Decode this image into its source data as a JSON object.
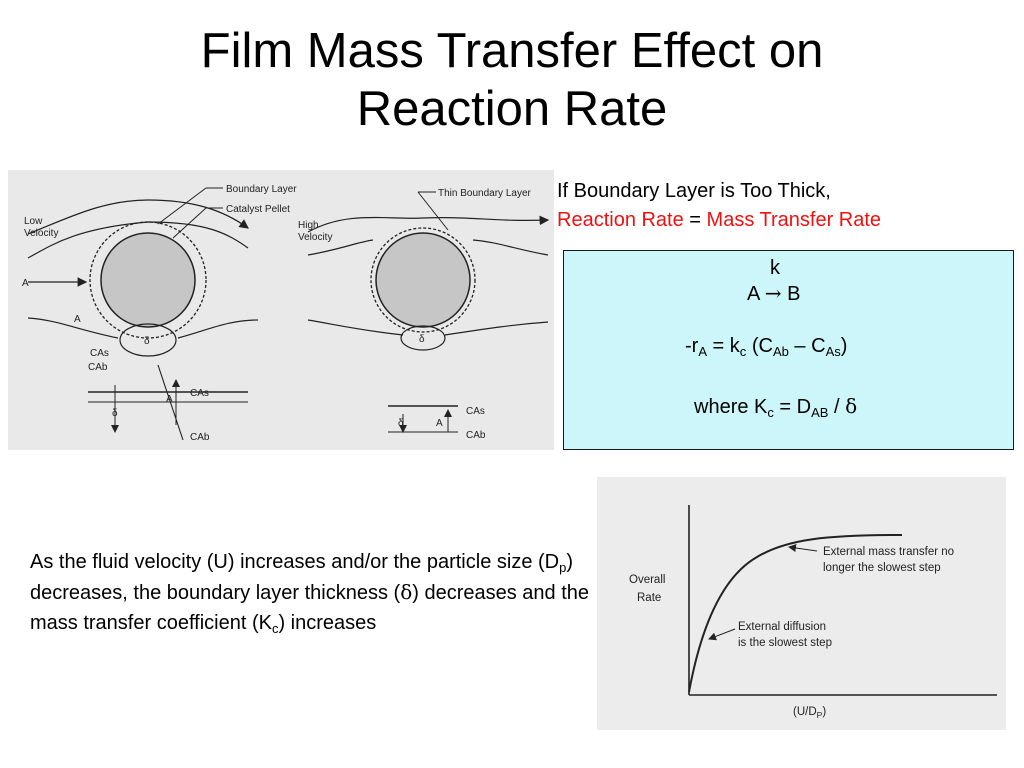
{
  "slide": {
    "title_line1": "Film Mass Transfer Effect on",
    "title_line2": "Reaction Rate"
  },
  "figure_left": {
    "labels": {
      "boundary_layer": "Boundary Layer",
      "catalyst_pellet": "Catalyst Pellet",
      "low": "Low",
      "velocity": "Velocity",
      "high": "High",
      "thin_boundary_layer": "Thin Boundary Layer",
      "a_species": "A",
      "delta": "δ",
      "c_as": "CAs",
      "c_ab": "CAb"
    }
  },
  "note": {
    "line1": "If Boundary Layer is Too Thick,",
    "reaction_rate": "Reaction Rate",
    "equals": " = ",
    "mass_transfer_rate": "Mass Transfer Rate"
  },
  "equation_box": {
    "k_label": "k",
    "reaction_left": "A ",
    "arrow": "→",
    "reaction_right": " B",
    "rate_prefix": "-r",
    "rate_sub_a": "A",
    "rate_eq": " = k",
    "rate_sub_c": "c",
    "rate_paren_open": " (C",
    "rate_sub_ab": "Ab",
    "rate_minus": " – C",
    "rate_sub_as": "As",
    "rate_paren_close": ")",
    "where_prefix": "where K",
    "where_sub_c": "c",
    "where_eq": " = D",
    "where_sub_ab": "AB",
    "where_slash": " / ",
    "delta": "δ"
  },
  "paragraph": {
    "part1": "As the fluid velocity (U) increases and/or the particle size (D",
    "sub_p": "p",
    "part2": ") decreases, the boundary layer thickness (",
    "delta": "δ",
    "part3": ") decreases and the mass transfer coefficient (K",
    "sub_c": "c",
    "part4": ") increases"
  },
  "figure_right": {
    "y_label_1": "Overall",
    "y_label_2": "Rate",
    "x_label": "(U/D",
    "x_label_sub": "P",
    "x_label_end": ")",
    "annotation_top_1": "External mass transfer no",
    "annotation_top_2": "longer the slowest step",
    "annotation_low_1": "External diffusion",
    "annotation_low_2": "is the slowest step"
  }
}
